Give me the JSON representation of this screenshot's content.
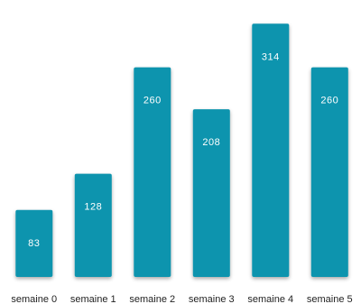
{
  "chart_data": {
    "type": "bar",
    "categories": [
      "semaine 0",
      "semaine 1",
      "semaine 2",
      "semaine 3",
      "semaine 4",
      "semaine 5"
    ],
    "values": [
      83,
      128,
      260,
      208,
      314,
      260
    ],
    "value_labels": [
      "83",
      "128",
      "260",
      "208",
      "314",
      "260"
    ],
    "title": "",
    "xlabel": "",
    "ylabel": "",
    "ylim": [
      0,
      330
    ],
    "grid": false,
    "legend": "none",
    "bar_color": "#0f94ae",
    "value_label_color": "#ffffff",
    "category_label_color": "#222222"
  }
}
